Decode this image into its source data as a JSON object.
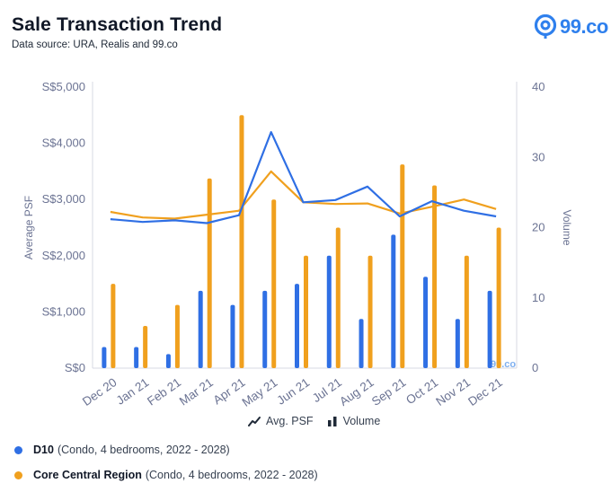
{
  "header": {
    "title": "Sale Transaction Trend",
    "subtitle": "Data source: URA, Realis and 99.co",
    "logo_text": "99.co"
  },
  "watermark": {
    "text": "99.co"
  },
  "legend": {
    "psf_label": "Avg. PSF",
    "psf_icon": "trend-line-icon",
    "volume_label": "Volume",
    "volume_icon": "bar-chart-icon"
  },
  "series_legend": [
    {
      "name": "D10",
      "detail": "(Condo, 4 bedrooms, 2022 - 2028)",
      "color": "#2f6fe4"
    },
    {
      "name": "Core Central Region",
      "detail": "(Condo, 4 bedrooms, 2022 - 2028)",
      "color": "#f0a01e"
    }
  ],
  "chart_data": {
    "type": "bar",
    "categories": [
      "Dec 20",
      "Jan 21",
      "Feb 21",
      "Mar 21",
      "Apr 21",
      "May 21",
      "Jun 21",
      "Jul 21",
      "Aug 21",
      "Sep 21",
      "Oct 21",
      "Nov 21",
      "Dec 21"
    ],
    "ylabel": "Average PSF",
    "y2label": "Volume",
    "ylim": [
      0,
      5000
    ],
    "y2lim": [
      0,
      40
    ],
    "yticks": [
      "S$0",
      "S$1,000",
      "S$2,000",
      "S$3,000",
      "S$4,000",
      "S$5,000"
    ],
    "y2ticks": [
      "0",
      "10",
      "20",
      "30",
      "40"
    ],
    "grid": false,
    "colors": {
      "d10": "#2f6fe4",
      "ccr": "#f0a01e"
    },
    "volume": {
      "D10": [
        3,
        3,
        2,
        11,
        9,
        11,
        12,
        16,
        7,
        19,
        13,
        7,
        11
      ],
      "Core Central Region": [
        12,
        6,
        9,
        27,
        36,
        24,
        16,
        20,
        16,
        29,
        26,
        16,
        20
      ]
    },
    "avg_psf": {
      "D10": [
        2650,
        2600,
        2630,
        2580,
        2720,
        4200,
        2950,
        2990,
        3230,
        2700,
        2970,
        2800,
        2700
      ],
      "Core Central Region": [
        2780,
        2680,
        2660,
        2730,
        2800,
        3500,
        2950,
        2920,
        2930,
        2750,
        2870,
        3000,
        2830
      ]
    }
  }
}
